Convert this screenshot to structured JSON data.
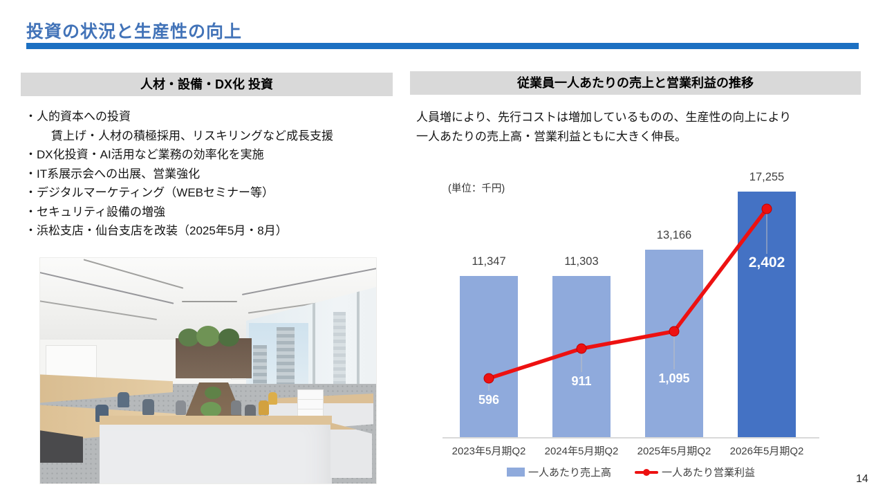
{
  "page": {
    "number": "14",
    "background_color": "#FFFFFF"
  },
  "header": {
    "title": "投資の状況と生産性の向上",
    "title_color": "#4273B8",
    "underline_color": "#1C70C2"
  },
  "left_panel": {
    "header": "人材・設備・DX化 投資",
    "header_bg_color": "#D9D9D9",
    "bullets": [
      "・人的資本への投資",
      "賃上げ・人材の積極採用、リスキリングなど成長支援",
      "・DX化投資・AI活用など業務の効率化を実施",
      "・IT系展示会への出展、営業強化",
      "・デジタルマーケティング（WEBセミナー等）",
      "・セキュリティ設備の増強",
      "・浜松支店・仙台支店を改装（2025年5月・8月）"
    ],
    "photo": "office-interior-rendering"
  },
  "right_panel": {
    "header": "従業員一人あたりの売上と営業利益の推移",
    "header_bg_color": "#D9D9D9",
    "description_lines": [
      "人員増により、先行コストは増加しているものの、生産性の向上により",
      "一人あたりの売上高・営業利益ともに大きく伸長。"
    ]
  },
  "chart_data": {
    "type": "bar+line combo",
    "unit_label": "(単位：千円)",
    "categories": [
      "2023年5月期Q2",
      "2024年5月期Q2",
      "2025年5月期Q2",
      "2026年5月期Q2"
    ],
    "series": [
      {
        "name": "一人あたり売上高",
        "type": "bar",
        "values": [
          11347,
          11303,
          13166,
          17255
        ],
        "labels": [
          "11,347",
          "11,303",
          "13,166",
          "17,255"
        ],
        "color": "#8FAADC",
        "highlight_color": "#4472C4",
        "highlight_index": 3
      },
      {
        "name": "一人あたり営業利益",
        "type": "line",
        "values": [
          596,
          911,
          1095,
          2402
        ],
        "labels": [
          "596",
          "911",
          "1,095",
          "2,402"
        ],
        "color": "#ED1111",
        "marker_edge_color": "#C00000"
      }
    ],
    "legend_position": "bottom",
    "gridlines": false,
    "axis": {
      "bar_axis_min": 0,
      "bar_axis_max": 18000,
      "line_axis_min": 0,
      "line_axis_max": 2600
    },
    "leader_line_color": "#BFBFBF",
    "axis_line_color": "#D9D9D9"
  }
}
